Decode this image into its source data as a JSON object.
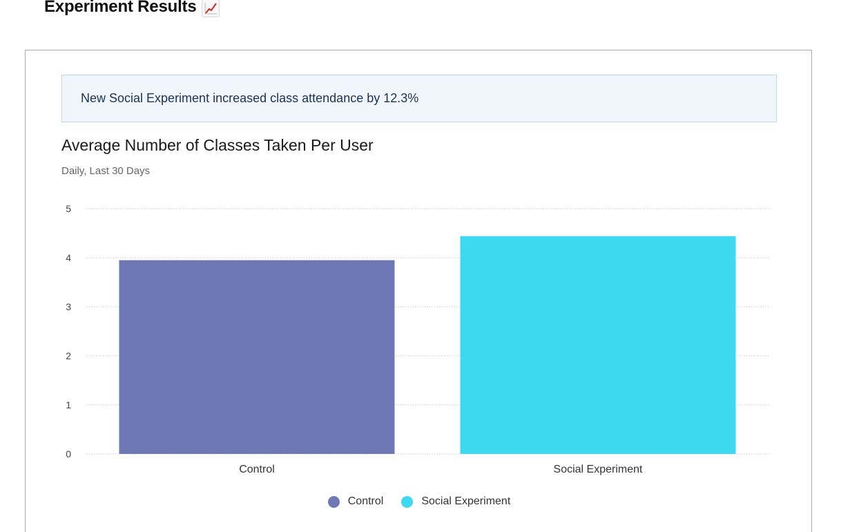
{
  "page": {
    "title": "Experiment Results",
    "title_icon": "chart-increasing-icon"
  },
  "banner": {
    "text": "New Social Experiment increased class attendance by 12.3%"
  },
  "chart_data": {
    "type": "bar",
    "title": "Average Number of Classes Taken Per User",
    "subtitle": "Daily, Last 30 Days",
    "categories": [
      "Control",
      "Social Experiment"
    ],
    "values": [
      3.95,
      4.44
    ],
    "colors": [
      "#6e78b5",
      "#3ed8f0"
    ],
    "ylim": [
      0,
      5
    ],
    "yticks": [
      0,
      1,
      2,
      3,
      4,
      5
    ],
    "grid": true,
    "legend_placement": "bottom-center",
    "legend": [
      {
        "label": "Control",
        "color": "#6e78b5"
      },
      {
        "label": "Social Experiment",
        "color": "#3ed8f0"
      }
    ]
  }
}
